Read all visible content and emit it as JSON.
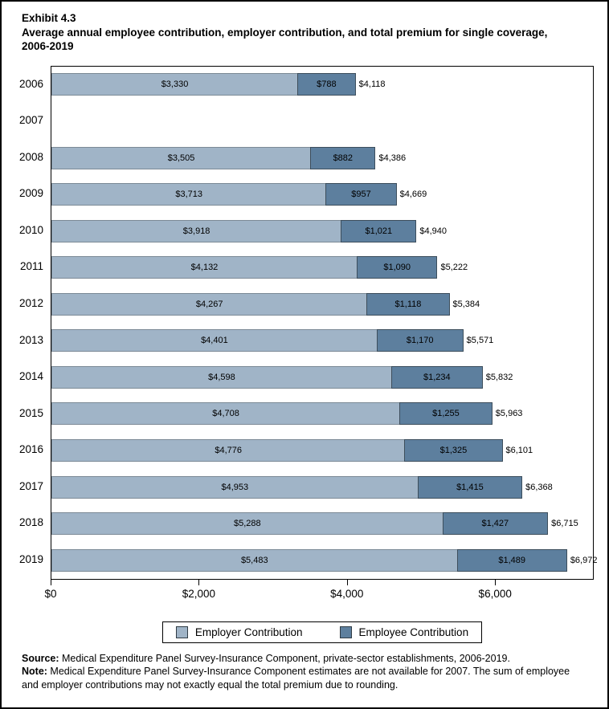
{
  "title": {
    "exhibit": "Exhibit 4.3",
    "text": "Average annual employee contribution, employer contribution, and total premium for single coverage, 2006-2019"
  },
  "chart_data": {
    "type": "bar",
    "orientation": "horizontal",
    "stacked": true,
    "title": "Average annual employee contribution, employer contribution, and total premium for single coverage, 2006-2019",
    "categories": [
      "2006",
      "2007",
      "2008",
      "2009",
      "2010",
      "2011",
      "2012",
      "2013",
      "2014",
      "2015",
      "2016",
      "2017",
      "2018",
      "2019"
    ],
    "series": [
      {
        "name": "Employer Contribution",
        "values": [
          3330,
          null,
          3505,
          3713,
          3918,
          4132,
          4267,
          4401,
          4598,
          4708,
          4776,
          4953,
          5288,
          5483
        ]
      },
      {
        "name": "Employee Contribution",
        "values": [
          788,
          null,
          882,
          957,
          1021,
          1090,
          1118,
          1170,
          1234,
          1255,
          1325,
          1415,
          1427,
          1489
        ]
      }
    ],
    "totals": [
      4118,
      null,
      4386,
      4669,
      4940,
      5222,
      5384,
      5571,
      5832,
      5963,
      6101,
      6368,
      6715,
      6972
    ],
    "x_ticks": [
      0,
      2000,
      4000,
      6000
    ],
    "x_tick_labels": [
      "$0",
      "$2,000",
      "$4,000",
      "$6,000"
    ],
    "xlim": [
      0,
      7310
    ],
    "grid": false,
    "legend_position": "bottom",
    "colors": {
      "employer": "#a0b4c7",
      "employee": "#5d7f9e"
    }
  },
  "footer": {
    "source_label": "Source:",
    "source_text": " Medical Expenditure Panel Survey-Insurance Component, private-sector establishments, 2006-2019.",
    "note_label": "Note:",
    "note_text": " Medical Expenditure Panel Survey-Insurance Component estimates are not available for 2007. The sum of employee and employer contributions may not exactly equal the total premium due to rounding."
  }
}
